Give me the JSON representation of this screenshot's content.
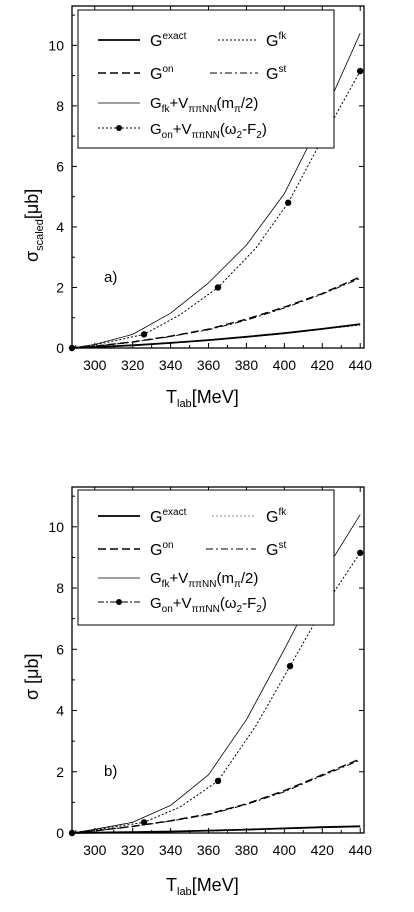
{
  "chart_data": [
    {
      "type": "line",
      "panel_label": "a)",
      "xlabel": "T_lab[MeV]",
      "ylabel": "σ_scaled [μb]",
      "xlim": [
        288,
        442
      ],
      "ylim": [
        0,
        11.3
      ],
      "x_ticks": [
        300,
        320,
        340,
        360,
        380,
        400,
        420,
        440
      ],
      "y_ticks": [
        0,
        2,
        4,
        6,
        8,
        10
      ],
      "grid": false,
      "legend_position": "top",
      "series": [
        {
          "name": "G^exact",
          "style": "solid-thick",
          "x": [
            288,
            300,
            320,
            340,
            360,
            380,
            400,
            420,
            440
          ],
          "y": [
            0,
            0.03,
            0.09,
            0.17,
            0.26,
            0.37,
            0.49,
            0.63,
            0.79
          ]
        },
        {
          "name": "G^fk",
          "style": "dotted",
          "x": [
            288,
            300,
            320,
            340,
            360,
            380,
            400,
            420,
            440
          ],
          "y": [
            0,
            0.03,
            0.08,
            0.16,
            0.25,
            0.36,
            0.48,
            0.62,
            0.76
          ]
        },
        {
          "name": "G^on",
          "style": "dashed",
          "x": [
            288,
            300,
            320,
            340,
            360,
            380,
            400,
            420,
            440
          ],
          "y": [
            0,
            0.06,
            0.2,
            0.39,
            0.62,
            0.95,
            1.35,
            1.8,
            2.35
          ]
        },
        {
          "name": "G^st",
          "style": "dashdot",
          "x": [
            288,
            300,
            320,
            340,
            360,
            380,
            400,
            420,
            440
          ],
          "y": [
            0,
            0.06,
            0.19,
            0.38,
            0.6,
            0.92,
            1.32,
            1.78,
            2.3
          ]
        },
        {
          "name": "G_fk+V_ππNN(m_π/2)",
          "style": "thin",
          "x": [
            288,
            300,
            320,
            340,
            360,
            380,
            400,
            420,
            440
          ],
          "y": [
            0,
            0.12,
            0.45,
            1.15,
            2.15,
            3.4,
            5.1,
            7.6,
            10.4
          ]
        },
        {
          "name": "G_on+V_ππNN(ω_2-F_2)",
          "style": "dotted-markers",
          "x": [
            288,
            300,
            326,
            345,
            365,
            385,
            402,
            420,
            440
          ],
          "y": [
            0,
            0.1,
            0.45,
            1.1,
            2.0,
            3.3,
            4.8,
            6.9,
            9.15
          ],
          "markers": [
            [
              288,
              0
            ],
            [
              326,
              0.45
            ],
            [
              365,
              2.0
            ],
            [
              402,
              4.8
            ],
            [
              440,
              9.15
            ]
          ]
        }
      ]
    },
    {
      "type": "line",
      "panel_label": "b)",
      "xlabel": "T_lab[MeV]",
      "ylabel": "σ [μb]",
      "xlim": [
        288,
        442
      ],
      "ylim": [
        0,
        11.3
      ],
      "x_ticks": [
        300,
        320,
        340,
        360,
        380,
        400,
        420,
        440
      ],
      "y_ticks": [
        0,
        2,
        4,
        6,
        8,
        10
      ],
      "grid": false,
      "legend_position": "top",
      "series": [
        {
          "name": "G^exact",
          "style": "solid-thick",
          "x": [
            288,
            300,
            320,
            340,
            360,
            380,
            400,
            420,
            440
          ],
          "y": [
            0,
            0.01,
            0.03,
            0.05,
            0.08,
            0.11,
            0.15,
            0.19,
            0.22
          ]
        },
        {
          "name": "G^fk",
          "style": "dotted",
          "x": [
            288,
            300,
            320,
            340,
            360,
            380,
            400,
            420,
            440
          ],
          "y": [
            0,
            0.01,
            0.03,
            0.05,
            0.07,
            0.1,
            0.14,
            0.18,
            0.21
          ]
        },
        {
          "name": "G^on",
          "style": "dashed",
          "x": [
            288,
            300,
            320,
            340,
            360,
            380,
            400,
            420,
            440
          ],
          "y": [
            0,
            0.07,
            0.22,
            0.4,
            0.62,
            0.95,
            1.38,
            1.9,
            2.42
          ]
        },
        {
          "name": "G^st",
          "style": "dashdot",
          "x": [
            288,
            300,
            320,
            340,
            360,
            380,
            400,
            420,
            440
          ],
          "y": [
            0,
            0.07,
            0.21,
            0.39,
            0.6,
            0.93,
            1.35,
            1.87,
            2.38
          ]
        },
        {
          "name": "G_fk+V_ππNN(m_π/2)",
          "style": "thin",
          "x": [
            288,
            300,
            320,
            340,
            360,
            380,
            400,
            420,
            440
          ],
          "y": [
            0,
            0.12,
            0.35,
            0.9,
            1.9,
            3.7,
            6.0,
            8.4,
            10.4
          ]
        },
        {
          "name": "G_on+V_ππNN(ω_2-F_2)",
          "style": "dotted-markers",
          "x": [
            288,
            300,
            326,
            345,
            365,
            385,
            403,
            420,
            440
          ],
          "y": [
            0,
            0.1,
            0.35,
            0.85,
            1.7,
            3.5,
            5.45,
            7.3,
            9.15
          ],
          "markers": [
            [
              288,
              0
            ],
            [
              326,
              0.35
            ],
            [
              365,
              1.7
            ],
            [
              403,
              5.45
            ],
            [
              440,
              9.15
            ]
          ]
        }
      ]
    }
  ],
  "legend_text": {
    "g_exact": {
      "base": "G",
      "sup": "exact"
    },
    "g_fk": {
      "base": "G",
      "sup": "fk"
    },
    "g_on": {
      "base": "G",
      "sup": "on"
    },
    "g_st": {
      "base": "G",
      "sup": "st"
    },
    "g_fk_v": {
      "g": "G",
      "g_sub": "fk",
      "plus_v": "+V",
      "v_sub": "ππNN",
      "arg_open": "(m",
      "arg_sub": "π",
      "arg_close": "/2)"
    },
    "g_on_v": {
      "g": "G",
      "g_sub": "on",
      "plus_v": "+V",
      "v_sub": "ππNN",
      "arg_open": "(ω",
      "arg_sub": "2",
      "arg_close": "-F",
      "arg_sub2": "2",
      "arg_end": ")"
    }
  },
  "axis_text": {
    "a": {
      "x_main": "T",
      "x_sub": "lab",
      "x_unit": "[MeV]",
      "y_main": "σ",
      "y_sub": "scaled",
      "y_unit": "[μb]",
      "panel": "a)"
    },
    "b": {
      "x_main": "T",
      "x_sub": "lab",
      "x_unit": "[MeV]",
      "y_main": "σ",
      "y_unit": " [μb]",
      "panel": "b)"
    }
  }
}
